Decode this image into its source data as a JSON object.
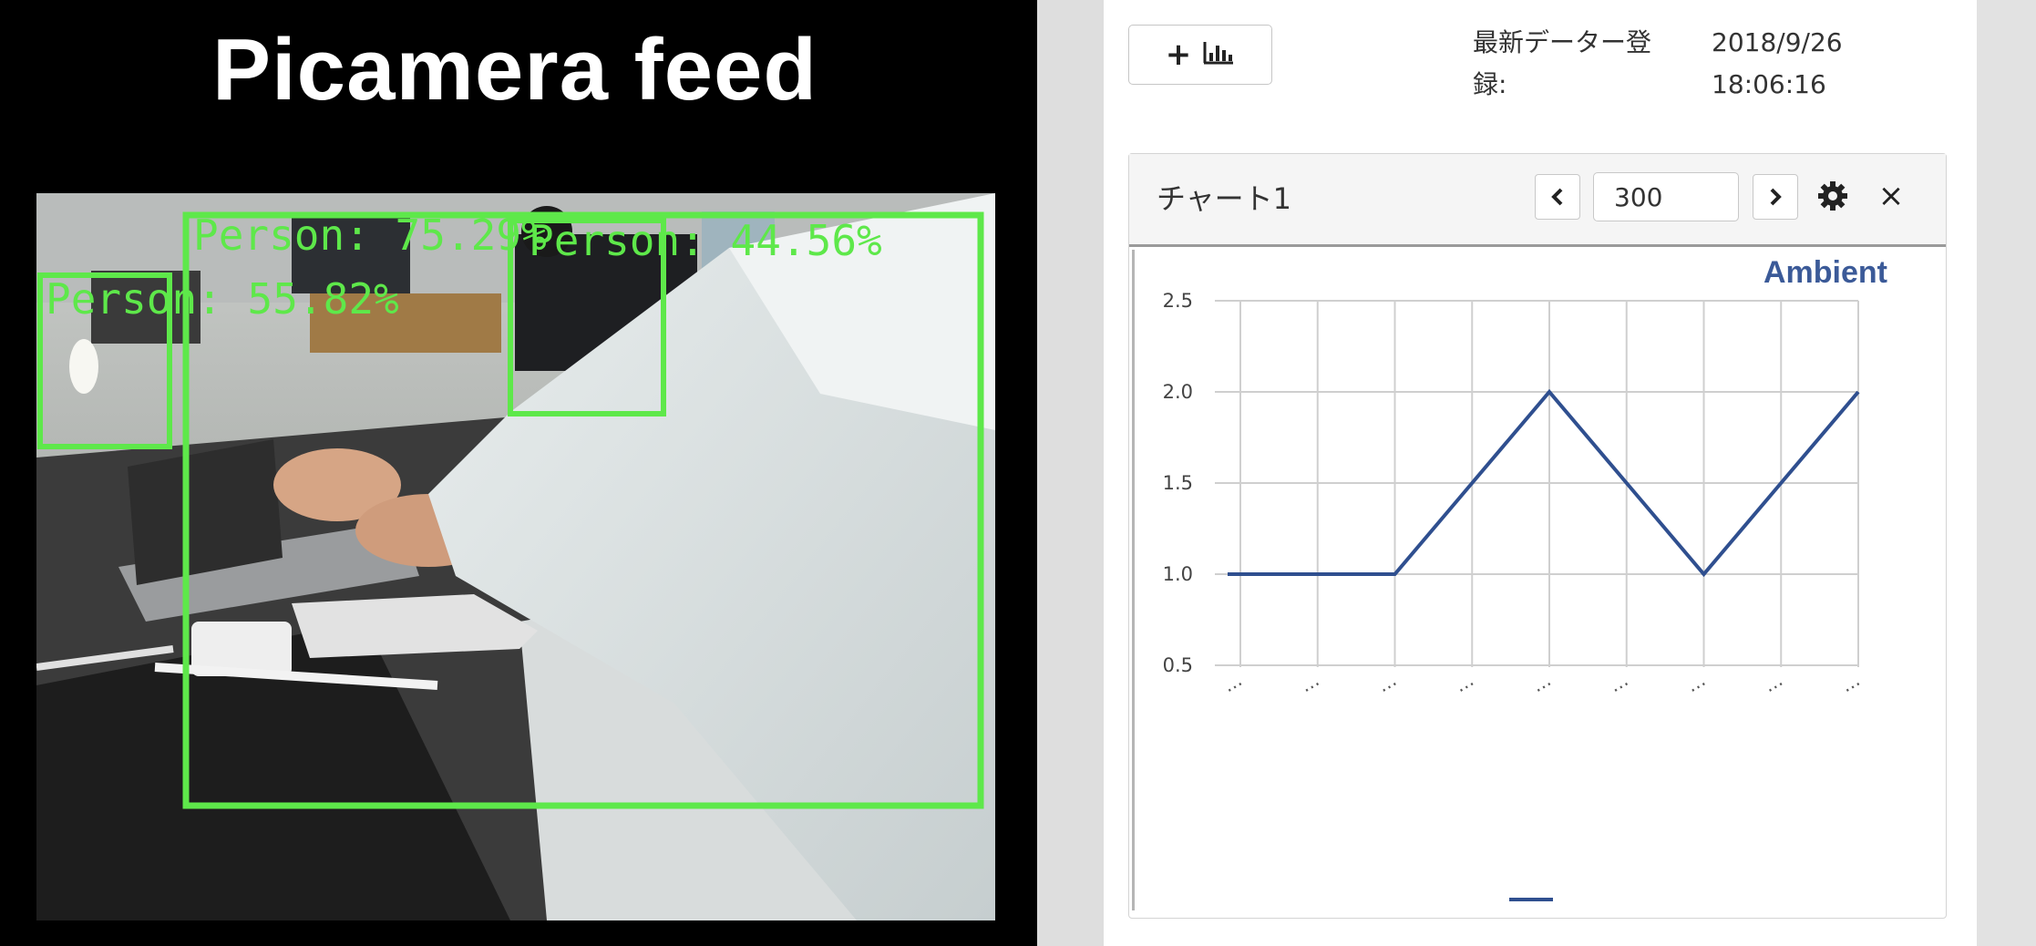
{
  "feed": {
    "title": "Picamera feed",
    "detections": [
      {
        "label": "Person: 75.29%"
      },
      {
        "label": "Person: 44.56%"
      },
      {
        "label": "Person: 55.82%"
      }
    ],
    "box_color": "#5ee84a"
  },
  "toolbar": {
    "add_chart_icon": "plus-bar-chart-icon"
  },
  "meta": {
    "label_line1": "最新データー登",
    "label_line2": "録:",
    "date": "2018/9/26",
    "time": "18:06:16"
  },
  "panel": {
    "title": "チャート1",
    "page_value": "300",
    "prev_icon": "chevron-left-icon",
    "next_icon": "chevron-right-icon",
    "settings_icon": "gear-icon",
    "close_label": "×"
  },
  "chart_data": {
    "type": "line",
    "title": "Ambient",
    "x_tick_label": "…",
    "x_count": 9,
    "yticks": [
      2.5,
      2.0,
      1.5,
      1.0,
      0.5
    ],
    "ylim": [
      0.5,
      2.5
    ],
    "grid": true,
    "series": [
      {
        "values": [
          1.0,
          1.0,
          1.0,
          1.5,
          2.0,
          1.5,
          1.0,
          1.5,
          2.0
        ],
        "color": "#2f4f8f"
      }
    ],
    "legend_position": "bottom"
  }
}
